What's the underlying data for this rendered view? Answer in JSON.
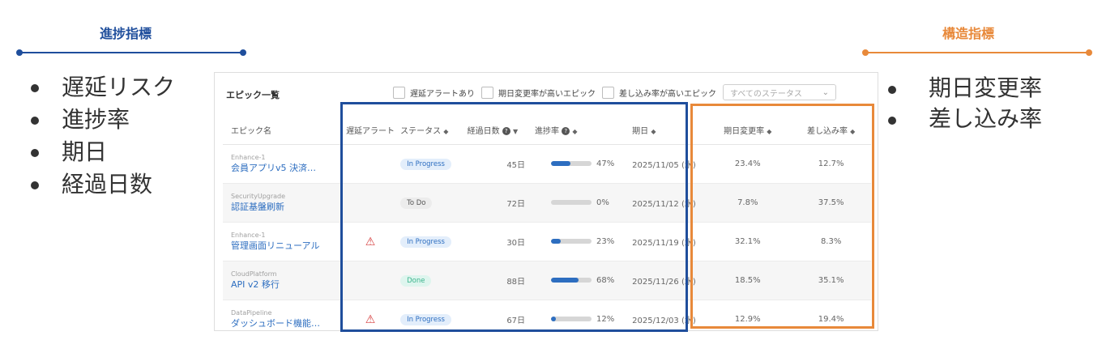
{
  "left_section": {
    "heading": "進捗指標",
    "bullets": [
      "遅延リスク",
      "進捗率",
      "期日",
      "経過日数"
    ],
    "color": "#1f4e9c"
  },
  "right_section": {
    "heading": "構造指標",
    "bullets": [
      "期日変更率",
      "差し込み率"
    ],
    "color": "#e8893a"
  },
  "table_panel": {
    "title": "エピック一覧",
    "filters": [
      "遅延アラートあり",
      "期日変更率が高いエピック",
      "差し込み率が高いエピック"
    ],
    "status_select": {
      "placeholder": "すべてのステータス"
    },
    "columns": {
      "name": "エピック名",
      "alert": "遅延アラート",
      "status": "ステータス",
      "days": "経過日数",
      "progress": "進捗率",
      "due": "期日",
      "change_rate": "期日変更率",
      "insert_rate": "差し込み率"
    },
    "rows": [
      {
        "project": "Enhance-1",
        "name": "会員アプリv5 決済…",
        "alert": false,
        "status": "In Progress",
        "days": "45日",
        "progress": 0.47,
        "progress_text": "47%",
        "due": "2025/11/05 (水)",
        "change_rate": "23.4%",
        "insert_rate": "12.7%"
      },
      {
        "project": "SecurityUpgrade",
        "name": "認証基盤刷新",
        "alert": false,
        "status": "To Do",
        "days": "72日",
        "progress": 0.0,
        "progress_text": "0%",
        "due": "2025/11/12 (水)",
        "change_rate": "7.8%",
        "insert_rate": "37.5%"
      },
      {
        "project": "Enhance-1",
        "name": "管理画面リニューアル",
        "alert": true,
        "status": "In Progress",
        "days": "30日",
        "progress": 0.23,
        "progress_text": "23%",
        "due": "2025/11/19 (水)",
        "change_rate": "32.1%",
        "insert_rate": "8.3%"
      },
      {
        "project": "CloudPlatform",
        "name": "API v2 移行",
        "alert": false,
        "status": "Done",
        "days": "88日",
        "progress": 0.68,
        "progress_text": "68%",
        "due": "2025/11/26 (水)",
        "change_rate": "18.5%",
        "insert_rate": "35.1%"
      },
      {
        "project": "DataPipeline",
        "name": "ダッシュボード機能…",
        "alert": true,
        "status": "In Progress",
        "days": "67日",
        "progress": 0.12,
        "progress_text": "12%",
        "due": "2025/12/03 (水)",
        "change_rate": "12.9%",
        "insert_rate": "19.4%"
      }
    ]
  },
  "icons": {
    "alert": "warning-triangle-icon",
    "help": "help-circle-icon",
    "sort": "sort-icon",
    "chevron": "chevron-down-icon"
  },
  "colors": {
    "accent_blue": "#2d6ec0",
    "alert_red": "#d64040",
    "progress_highlight": "#1f4e9c",
    "structure_highlight": "#e8893a"
  }
}
